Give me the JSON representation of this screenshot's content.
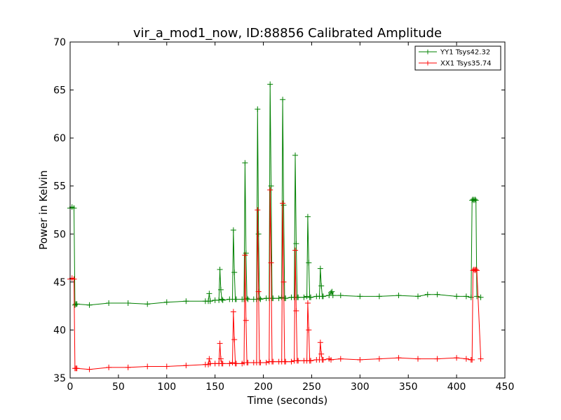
{
  "chart_data": {
    "type": "line",
    "title": "vir_a_mod1_now, ID:88856 Calibrated Amplitude",
    "xlabel": "Time (seconds)",
    "ylabel": "Power in Kelvin",
    "xlim": [
      0,
      450
    ],
    "ylim": [
      35,
      70
    ],
    "xticks": [
      0,
      50,
      100,
      150,
      200,
      250,
      300,
      350,
      400,
      450
    ],
    "yticks": [
      35,
      40,
      45,
      50,
      55,
      60,
      65,
      70
    ],
    "grid": false,
    "legend_position": "top-right",
    "series": [
      {
        "name": "YY1 Tsys42.32",
        "color": "#008000",
        "marker": "+",
        "x": [
          0,
          2,
          4,
          5,
          6,
          7,
          20,
          40,
          60,
          80,
          100,
          120,
          140,
          143,
          144,
          145,
          150,
          154,
          155,
          156,
          157,
          158,
          165,
          168,
          169,
          170,
          171,
          172,
          178,
          180,
          181,
          182,
          183,
          184,
          190,
          193,
          194,
          195,
          196,
          197,
          203,
          206,
          207,
          208,
          209,
          210,
          216,
          219,
          220,
          221,
          222,
          223,
          229,
          232,
          233,
          234,
          235,
          236,
          242,
          245,
          246,
          247,
          248,
          249,
          255,
          258,
          259,
          260,
          261,
          262,
          268,
          270,
          271,
          272,
          280,
          300,
          320,
          340,
          360,
          370,
          380,
          400,
          410,
          415,
          416,
          417,
          418,
          419,
          420,
          421,
          425
        ],
        "y": [
          52.7,
          52.8,
          52.7,
          42.6,
          42.7,
          42.7,
          42.6,
          42.8,
          42.8,
          42.7,
          42.9,
          43.0,
          43.0,
          43.0,
          43.8,
          43.0,
          43.1,
          43.1,
          46.3,
          44.2,
          43.2,
          43.1,
          43.2,
          43.2,
          50.4,
          46.0,
          43.2,
          43.2,
          43.2,
          43.2,
          57.4,
          48.0,
          43.3,
          43.2,
          43.2,
          43.2,
          63.0,
          50.0,
          43.3,
          43.2,
          43.3,
          43.3,
          65.6,
          55.0,
          43.3,
          43.3,
          43.3,
          43.4,
          64.0,
          53.0,
          43.3,
          43.3,
          43.4,
          43.4,
          58.2,
          49.0,
          43.4,
          43.4,
          43.4,
          43.5,
          51.8,
          47.0,
          43.4,
          43.4,
          43.5,
          43.5,
          46.4,
          44.6,
          43.5,
          43.5,
          43.6,
          43.9,
          44.0,
          43.6,
          43.6,
          43.5,
          43.5,
          43.6,
          43.5,
          43.7,
          43.7,
          43.5,
          43.5,
          43.4,
          53.5,
          53.6,
          53.5,
          53.6,
          53.5,
          43.5,
          43.4
        ]
      },
      {
        "name": "XX1 Tsys35.74",
        "color": "#ff0000",
        "marker": "+",
        "x": [
          0,
          2,
          4,
          5,
          6,
          7,
          20,
          40,
          60,
          80,
          100,
          120,
          140,
          143,
          144,
          145,
          150,
          154,
          155,
          156,
          157,
          158,
          165,
          168,
          169,
          170,
          171,
          172,
          178,
          180,
          181,
          182,
          183,
          184,
          190,
          193,
          194,
          195,
          196,
          197,
          203,
          206,
          207,
          208,
          209,
          210,
          216,
          219,
          220,
          221,
          222,
          223,
          229,
          232,
          233,
          234,
          235,
          236,
          242,
          245,
          246,
          247,
          248,
          249,
          255,
          258,
          259,
          260,
          261,
          262,
          268,
          270,
          280,
          300,
          320,
          340,
          360,
          380,
          400,
          410,
          415,
          416,
          417,
          418,
          419,
          420,
          421,
          425
        ],
        "y": [
          45.3,
          45.4,
          45.3,
          36.0,
          36.0,
          36.0,
          35.9,
          36.1,
          36.1,
          36.2,
          36.2,
          36.3,
          36.4,
          36.4,
          37.0,
          36.5,
          36.5,
          36.5,
          38.6,
          37.0,
          36.5,
          36.5,
          36.5,
          36.6,
          41.9,
          39.0,
          36.5,
          36.5,
          36.5,
          36.6,
          47.8,
          41.0,
          36.6,
          36.6,
          36.6,
          36.6,
          52.5,
          44.0,
          36.6,
          36.6,
          36.6,
          36.7,
          54.6,
          47.0,
          36.7,
          36.7,
          36.7,
          36.7,
          53.2,
          45.0,
          36.7,
          36.7,
          36.7,
          36.8,
          48.3,
          42.0,
          36.8,
          36.8,
          36.8,
          36.8,
          42.8,
          40.0,
          36.8,
          36.8,
          36.9,
          36.9,
          38.7,
          37.5,
          36.9,
          36.9,
          37.0,
          36.9,
          37.0,
          36.9,
          37.0,
          37.1,
          37.0,
          37.0,
          37.1,
          37.0,
          36.9,
          36.9,
          46.2,
          46.3,
          46.2,
          46.3,
          46.2,
          37.0
        ]
      }
    ]
  }
}
